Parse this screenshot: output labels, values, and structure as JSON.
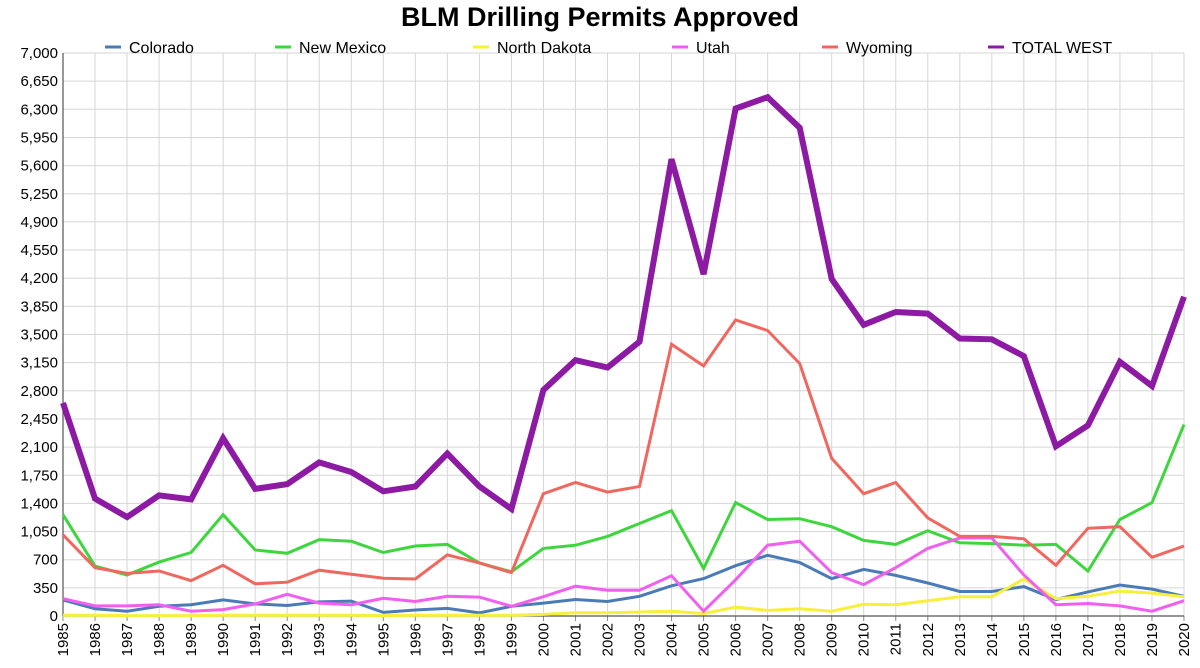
{
  "chart_data": {
    "type": "line",
    "title": "BLM Drilling Permits Approved",
    "xlabel": "",
    "ylabel": "",
    "ylim": [
      0,
      7000
    ],
    "y_ticks": [
      "0",
      "350",
      "700",
      "1,050",
      "1,400",
      "1,750",
      "2,100",
      "2,450",
      "2,800",
      "3,150",
      "3,500",
      "3,850",
      "4,200",
      "4,550",
      "4,900",
      "5,250",
      "5,600",
      "5,950",
      "6,300",
      "6,650",
      "7,000"
    ],
    "categories": [
      "1985",
      "1986",
      "1987",
      "1988",
      "1989",
      "1990",
      "1991",
      "1992",
      "1993",
      "1994",
      "1995",
      "1996",
      "1997",
      "1998",
      "1999",
      "2000",
      "2001",
      "2002",
      "2003",
      "2004",
      "2005",
      "2006",
      "2007",
      "2008",
      "2009",
      "2010",
      "2011",
      "2012",
      "2013",
      "2014",
      "2015",
      "2016",
      "2017",
      "2018",
      "2019",
      "2020"
    ],
    "grid": true,
    "legend_position": "top",
    "series": [
      {
        "name": "Colorado",
        "color": "#4a7bb7",
        "width": 3,
        "values": [
          200,
          90,
          60,
          120,
          140,
          200,
          150,
          130,
          175,
          185,
          45,
          75,
          95,
          40,
          120,
          160,
          205,
          180,
          245,
          375,
          465,
          625,
          755,
          665,
          465,
          580,
          505,
          410,
          305,
          305,
          365,
          205,
          300,
          385,
          335,
          245
        ]
      },
      {
        "name": "New Mexico",
        "color": "#3dd63d",
        "width": 3,
        "values": [
          1260,
          620,
          510,
          670,
          790,
          1260,
          820,
          780,
          950,
          930,
          790,
          870,
          890,
          660,
          550,
          840,
          880,
          990,
          1150,
          1310,
          590,
          1410,
          1200,
          1210,
          1110,
          940,
          890,
          1060,
          910,
          900,
          880,
          890,
          560,
          1200,
          1410,
          2380
        ]
      },
      {
        "name": "North Dakota",
        "color": "#f7ef3b",
        "width": 3,
        "values": [
          10,
          10,
          5,
          5,
          5,
          10,
          10,
          10,
          10,
          10,
          5,
          10,
          10,
          10,
          10,
          20,
          40,
          40,
          50,
          60,
          30,
          110,
          70,
          90,
          60,
          145,
          140,
          190,
          240,
          240,
          460,
          215,
          245,
          310,
          285,
          240
        ]
      },
      {
        "name": "Utah",
        "color": "#f05ff0",
        "width": 3,
        "values": [
          215,
          125,
          125,
          140,
          60,
          80,
          150,
          270,
          160,
          140,
          220,
          180,
          245,
          235,
          120,
          240,
          370,
          320,
          320,
          500,
          60,
          450,
          880,
          930,
          540,
          390,
          600,
          840,
          970,
          970,
          510,
          140,
          155,
          125,
          60,
          190
        ]
      },
      {
        "name": "Wyoming",
        "color": "#f0675f",
        "width": 3,
        "values": [
          1010,
          600,
          530,
          560,
          440,
          630,
          400,
          420,
          570,
          520,
          470,
          460,
          760,
          660,
          540,
          1520,
          1660,
          1540,
          1610,
          3380,
          3110,
          3680,
          3550,
          3140,
          1960,
          1520,
          1660,
          1220,
          990,
          990,
          960,
          630,
          1090,
          1110,
          730,
          870
        ]
      },
      {
        "name": "TOTAL WEST",
        "color": "#8c1aa3",
        "width": 6,
        "values": [
          2650,
          1460,
          1230,
          1500,
          1450,
          2210,
          1580,
          1640,
          1910,
          1790,
          1550,
          1610,
          2020,
          1610,
          1330,
          2810,
          3180,
          3090,
          3410,
          5680,
          4250,
          6310,
          6450,
          6070,
          4190,
          3620,
          3780,
          3760,
          3450,
          3440,
          3230,
          2110,
          2370,
          3160,
          2860,
          3970
        ]
      }
    ]
  }
}
